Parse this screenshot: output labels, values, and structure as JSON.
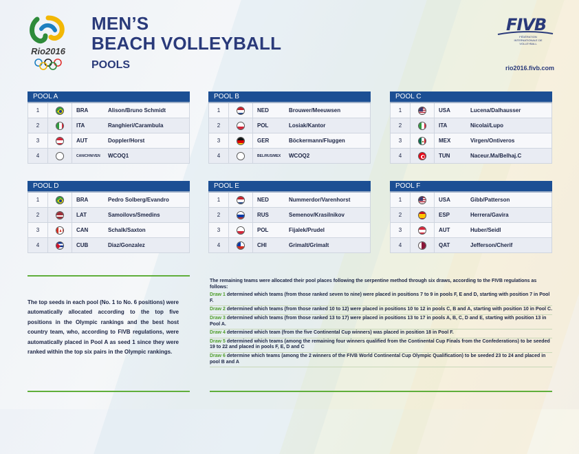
{
  "header": {
    "title_line1": "MEN’S",
    "title_line2": "BEACH VOLLEYBALL",
    "subtitle": "POOLS",
    "logo_text": "Rio2016",
    "fivb_logo": "FIVB",
    "fivb_subtitle": "FÉDÉRATION INTERNATIONALE DE VOLLEYBALL",
    "website": "rio2016.fivb.com"
  },
  "pools": [
    {
      "name": "POOL A",
      "rows": [
        {
          "seed": "1",
          "flag": "brazil",
          "code": "BRA",
          "team": "Alison/Bruno Schmidt"
        },
        {
          "seed": "2",
          "flag": "italy",
          "code": "ITA",
          "team": "Ranghieri/Carambula"
        },
        {
          "seed": "3",
          "flag": "austria",
          "code": "AUT",
          "team": "Doppler/Horst"
        },
        {
          "seed": "4",
          "flag": "empty",
          "code": "CAN/CHN/VEN",
          "team": "WCOQ1"
        }
      ]
    },
    {
      "name": "POOL B",
      "rows": [
        {
          "seed": "1",
          "flag": "netherlands",
          "code": "NED",
          "team": "Brouwer/Meeuwsen"
        },
        {
          "seed": "2",
          "flag": "poland",
          "code": "POL",
          "team": "Losiak/Kantor"
        },
        {
          "seed": "3",
          "flag": "germany",
          "code": "GER",
          "team": "Böckermann/Fluggen"
        },
        {
          "seed": "4",
          "flag": "empty",
          "code": "BEL/RUS/MEX",
          "team": "WCOQ2"
        }
      ]
    },
    {
      "name": "POOL C",
      "rows": [
        {
          "seed": "1",
          "flag": "usa",
          "code": "USA",
          "team": "Lucena/Dalhausser"
        },
        {
          "seed": "2",
          "flag": "italy",
          "code": "ITA",
          "team": "Nicolai/Lupo"
        },
        {
          "seed": "3",
          "flag": "mexico",
          "code": "MEX",
          "team": "Virgen/Ontiveros"
        },
        {
          "seed": "4",
          "flag": "tunisia",
          "code": "TUN",
          "team": "Naceur.Ma/Belhaj.C"
        }
      ]
    },
    {
      "name": "POOL D",
      "rows": [
        {
          "seed": "1",
          "flag": "brazil",
          "code": "BRA",
          "team": "Pedro Solberg/Evandro"
        },
        {
          "seed": "2",
          "flag": "latvia",
          "code": "LAT",
          "team": "Samoilovs/Smedins"
        },
        {
          "seed": "3",
          "flag": "canada",
          "code": "CAN",
          "team": "Schalk/Saxton"
        },
        {
          "seed": "4",
          "flag": "cuba",
          "code": "CUB",
          "team": "Diaz/Gonzalez"
        }
      ]
    },
    {
      "name": "POOL E",
      "rows": [
        {
          "seed": "1",
          "flag": "netherlands",
          "code": "NED",
          "team": "Nummerdor/Varenhorst"
        },
        {
          "seed": "2",
          "flag": "russia",
          "code": "RUS",
          "team": "Semenov/Krasilnikov"
        },
        {
          "seed": "3",
          "flag": "poland",
          "code": "POL",
          "team": "Fijalek/Prudel"
        },
        {
          "seed": "4",
          "flag": "chile",
          "code": "CHI",
          "team": "Grimalt/Grimalt"
        }
      ]
    },
    {
      "name": "POOL F",
      "rows": [
        {
          "seed": "1",
          "flag": "usa",
          "code": "USA",
          "team": "Gibb/Patterson"
        },
        {
          "seed": "2",
          "flag": "spain",
          "code": "ESP",
          "team": "Herrera/Gavira"
        },
        {
          "seed": "3",
          "flag": "austria",
          "code": "AUT",
          "team": "Huber/Seidl"
        },
        {
          "seed": "4",
          "flag": "qatar",
          "code": "QAT",
          "team": "Jefferson/Cherif"
        }
      ]
    }
  ],
  "info": {
    "left_text": "The top seeds in each pool (No. 1 to No. 6 positions) were automatically allocated according to the top five positions in the Olympic rankings and the best host country team, who, according to FIVB regulations, were automatically placed in Pool A as seed 1 since they were ranked within the top six pairs in the Olympic rankings.",
    "intro": "The remaining teams were allocated their pool places following the serpentine method through six draws, according to the FIVB regulations as follows:",
    "draws": [
      {
        "label": "Draw 1",
        "text": " determined which teams (from those ranked seven to nine) were placed in positions 7 to 9 in pools F, E and D, starting with position 7 in Pool F."
      },
      {
        "label": "Draw 2",
        "text": " determined which teams (from those ranked 10 to 12) were placed in positions 10 to 12 in pools C, B and A, starting with position 10 in Pool C."
      },
      {
        "label": "Draw 3",
        "text": " determined which teams (from those ranked 13 to 17) were placed in positions 13 to 17 in pools A, B, C, D and E, starting with position 13 in Pool A."
      },
      {
        "label": "Draw 4",
        "text": " determined which team (from the five Continental Cup winners) was placed in position 18 in Pool F."
      },
      {
        "label": "Draw 5",
        "text": " determined which teams (among the remaining four winners qualified from the Continental Cup Finals from the Confederations) to be seeded 19 to 22 and placed in pools F, E, D and C"
      },
      {
        "label": "Draw 6",
        "text": " determine which teams (among the 2 winners of the FIVB World Continental Cup Olympic Qualification) to be seeded 23 to 24 and placed in pool B and A"
      }
    ]
  }
}
